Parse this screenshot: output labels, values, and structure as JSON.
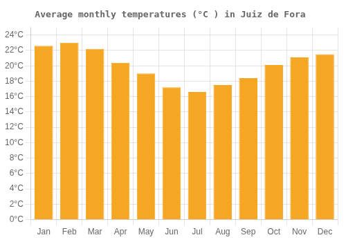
{
  "chart_data": {
    "type": "bar",
    "title": "Average monthly temperatures (°C ) in Juiz de Fora",
    "categories": [
      "Jan",
      "Feb",
      "Mar",
      "Apr",
      "May",
      "Jun",
      "Jul",
      "Aug",
      "Sep",
      "Oct",
      "Nov",
      "Dec"
    ],
    "values": [
      22.6,
      23.0,
      22.2,
      20.4,
      19.0,
      17.2,
      16.6,
      17.5,
      18.4,
      20.1,
      21.1,
      21.5
    ],
    "color": "#F5A623",
    "ylim": [
      0,
      25
    ],
    "yticks": [
      {
        "value": 0,
        "label": "0°C"
      },
      {
        "value": 2,
        "label": "2°C"
      },
      {
        "value": 4,
        "label": "4°C"
      },
      {
        "value": 6,
        "label": "6°C"
      },
      {
        "value": 8,
        "label": "8°C"
      },
      {
        "value": 10,
        "label": "10°C"
      },
      {
        "value": 12,
        "label": "12°C"
      },
      {
        "value": 14,
        "label": "14°C"
      },
      {
        "value": 16,
        "label": "16°C"
      },
      {
        "value": 18,
        "label": "18°C"
      },
      {
        "value": 20,
        "label": "20°C"
      },
      {
        "value": 22,
        "label": "22°C"
      },
      {
        "value": 24,
        "label": "24°C"
      }
    ],
    "grid": true
  }
}
